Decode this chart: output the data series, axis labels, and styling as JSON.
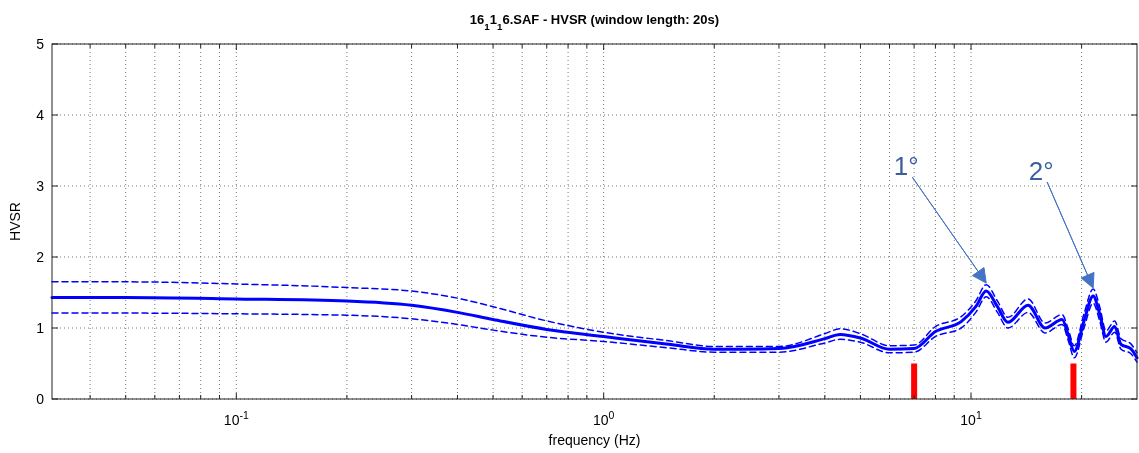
{
  "chart_data": {
    "type": "line",
    "title": "16$_{1}$1$_{1}$6.SAF - HVSR (window length: 20s)",
    "xlabel": "frequency (Hz)",
    "ylabel": "HVSR",
    "log": "x",
    "grid": true,
    "xlim": [
      0.0315,
      28.3
    ],
    "ylim": [
      0,
      5
    ],
    "xticks": [
      {
        "value": 0.04,
        "label": null
      },
      {
        "value": 0.05,
        "label": null
      },
      {
        "value": 0.06,
        "label": null
      },
      {
        "value": 0.07,
        "label": null
      },
      {
        "value": 0.08,
        "label": null
      },
      {
        "value": 0.09,
        "label": null
      },
      {
        "value": 0.1,
        "label": "10$^{-1}$"
      },
      {
        "value": 0.2,
        "label": null
      },
      {
        "value": 0.3,
        "label": null
      },
      {
        "value": 0.4,
        "label": null
      },
      {
        "value": 0.5,
        "label": null
      },
      {
        "value": 0.6,
        "label": null
      },
      {
        "value": 0.7,
        "label": null
      },
      {
        "value": 0.8,
        "label": null
      },
      {
        "value": 0.9,
        "label": null
      },
      {
        "value": 1,
        "label": "10$^{0}$"
      },
      {
        "value": 2,
        "label": null
      },
      {
        "value": 3,
        "label": null
      },
      {
        "value": 4,
        "label": null
      },
      {
        "value": 5,
        "label": null
      },
      {
        "value": 6,
        "label": null
      },
      {
        "value": 7,
        "label": null
      },
      {
        "value": 8,
        "label": null
      },
      {
        "value": 9,
        "label": null
      },
      {
        "value": 10,
        "label": "10$^{1}$"
      },
      {
        "value": 20,
        "label": null
      }
    ],
    "yticks": [
      0,
      1,
      2,
      3,
      4,
      5
    ],
    "x": [
      0.0315,
      0.05,
      0.1,
      0.2,
      0.3,
      0.4,
      0.5,
      0.7,
      1,
      1.5,
      2,
      3,
      4,
      4.4,
      5,
      6,
      7,
      8,
      9.4,
      10.3,
      11,
      11.8,
      12.6,
      14.3,
      15.9,
      17.7,
      18.4,
      19.1,
      20.3,
      21.5,
      22.4,
      23.3,
      24.6,
      25.6,
      27.2,
      28.3
    ],
    "series": [
      {
        "color": "#0000ff",
        "line_style": "solid",
        "values": [
          1.43,
          1.43,
          1.41,
          1.38,
          1.32,
          1.22,
          1.12,
          0.98,
          0.88,
          0.77,
          0.7,
          0.71,
          0.85,
          0.91,
          0.86,
          0.7,
          0.71,
          0.95,
          1.09,
          1.3,
          1.52,
          1.3,
          1.08,
          1.32,
          1.0,
          1.12,
          0.9,
          0.67,
          1.1,
          1.45,
          1.2,
          0.88,
          1.02,
          0.77,
          0.71,
          0.58
        ]
      },
      {
        "color": "#0000ff",
        "line_style": "dashed",
        "values": [
          1.65,
          1.65,
          1.62,
          1.57,
          1.52,
          1.42,
          1.3,
          1.1,
          0.94,
          0.82,
          0.74,
          0.74,
          0.92,
          0.99,
          0.92,
          0.75,
          0.76,
          1.02,
          1.16,
          1.38,
          1.61,
          1.38,
          1.15,
          1.41,
          1.07,
          1.19,
          0.98,
          0.75,
          1.2,
          1.55,
          1.3,
          0.96,
          1.1,
          0.85,
          0.78,
          0.65
        ]
      },
      {
        "color": "#0000ff",
        "line_style": "dashed",
        "values": [
          1.21,
          1.21,
          1.2,
          1.18,
          1.13,
          1.05,
          0.97,
          0.87,
          0.81,
          0.72,
          0.66,
          0.66,
          0.79,
          0.84,
          0.8,
          0.65,
          0.66,
          0.88,
          1.0,
          1.22,
          1.44,
          1.22,
          1.0,
          1.22,
          0.93,
          1.05,
          0.82,
          0.58,
          1.0,
          1.35,
          1.1,
          0.8,
          0.94,
          0.7,
          0.64,
          0.52
        ]
      },
      {
        "type": "bar",
        "color": "#ff0000",
        "x": [
          7,
          19
        ],
        "values": [
          0.5,
          0.5
        ]
      }
    ],
    "annotations": [
      "1°",
      "2°"
    ]
  }
}
